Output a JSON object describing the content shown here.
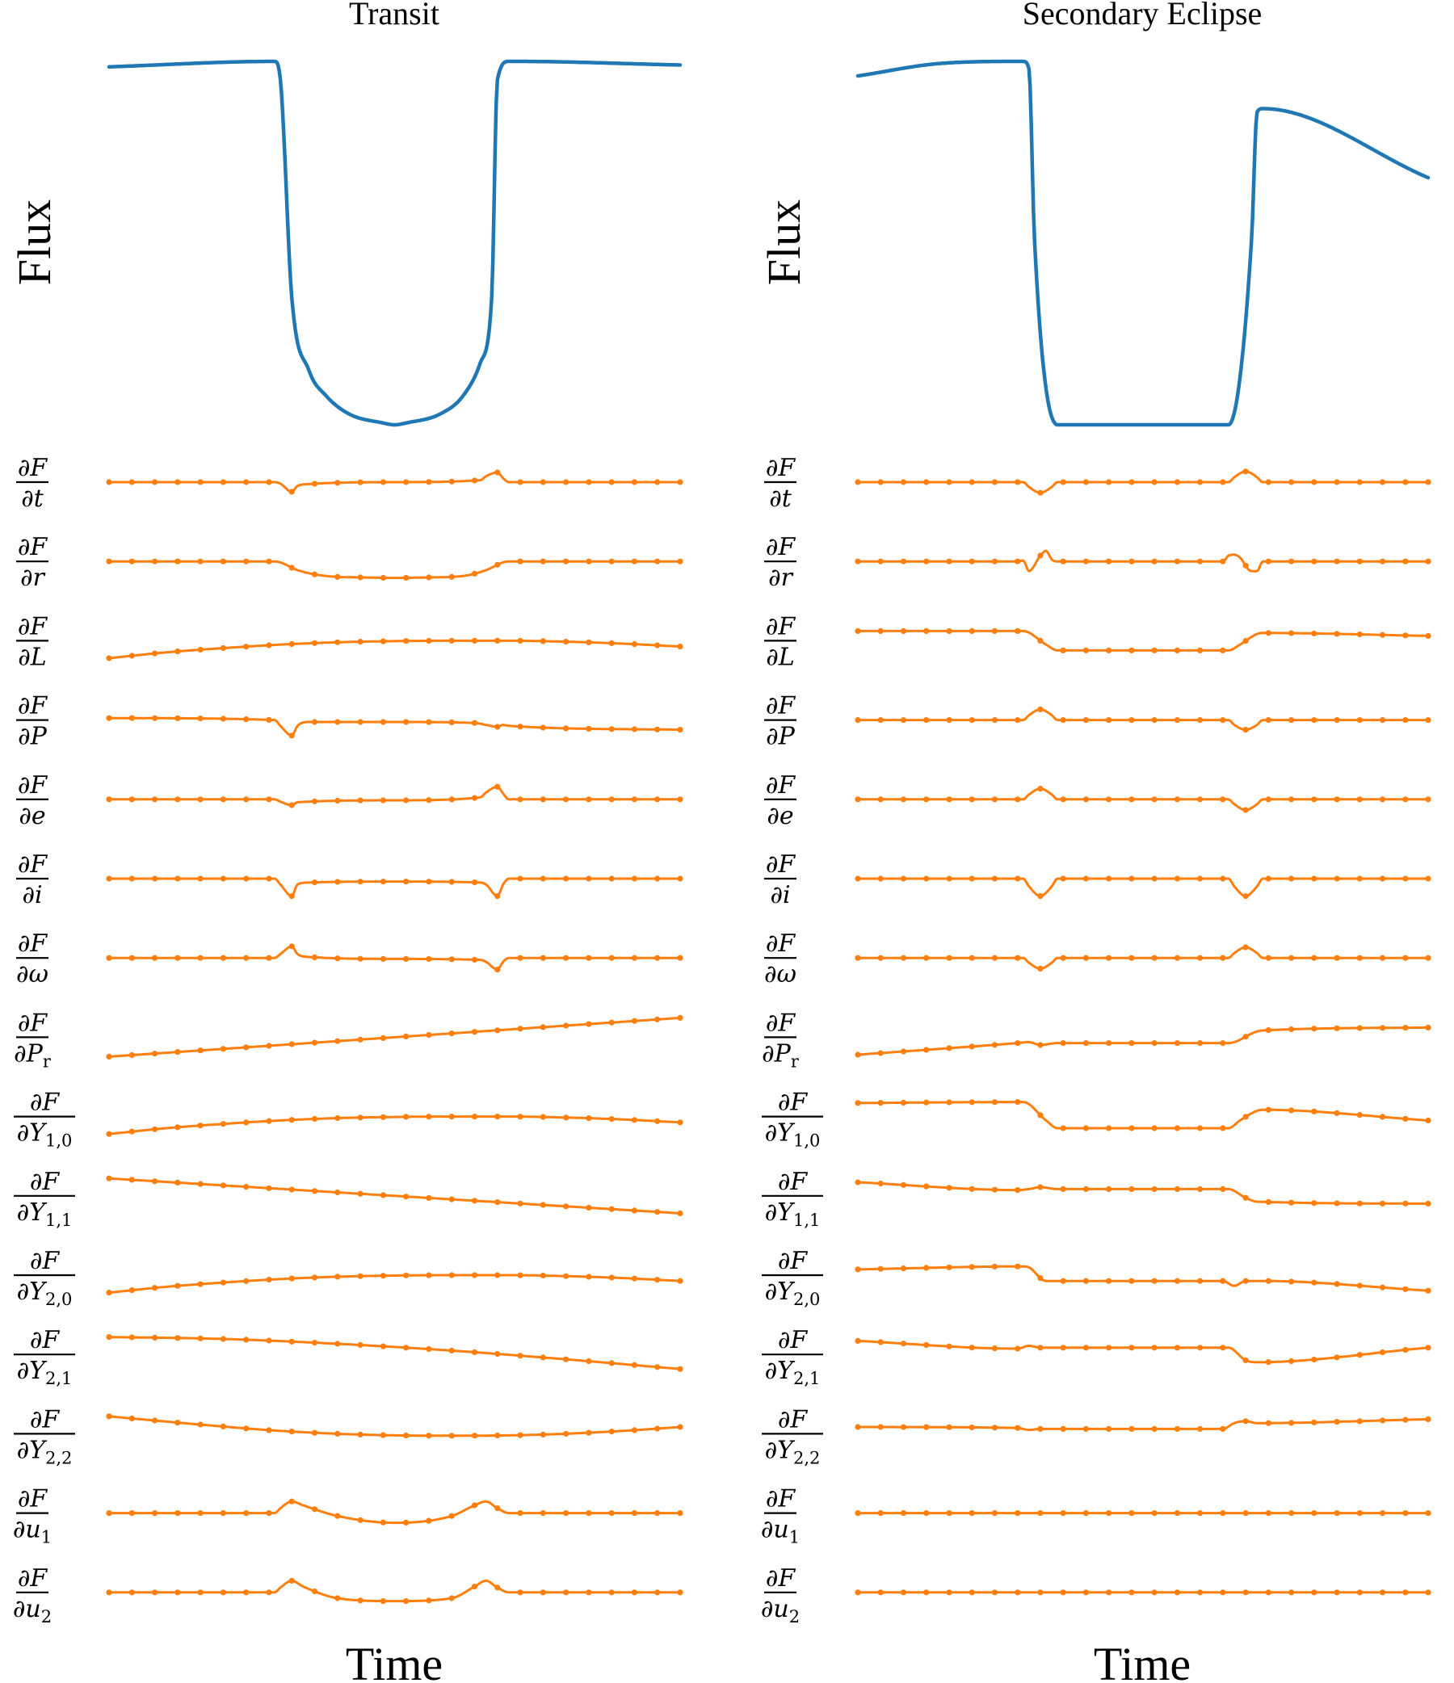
{
  "colors": {
    "flux": "#1f77b4",
    "derivative": "#ff7f0e"
  },
  "chart_data": {
    "type": "line",
    "description_layout": "two columns of stacked line plots; top panel flux vs time, below 15 derivative panels",
    "panels": [
      {
        "title": "Transit",
        "ylabel": "Flux",
        "xlabel": "Time",
        "flux": {
          "x": [
            0,
            0.29,
            0.3,
            0.32,
            0.35,
            0.38,
            0.42,
            0.48,
            0.5,
            0.52,
            0.58,
            0.62,
            0.65,
            0.67,
            0.68,
            0.7,
            0.71,
            1
          ],
          "y": [
            0.985,
            1.0,
            0.95,
            0.35,
            0.15,
            0.08,
            0.03,
            0.005,
            0.0,
            0.005,
            0.03,
            0.08,
            0.17,
            0.35,
            0.95,
            1.0,
            1.0,
            0.99
          ]
        },
        "derivatives": [
          {
            "label": "t",
            "num": "∂F",
            "den": "∂t",
            "x": [
              0,
              0.29,
              0.3,
              0.32,
              0.33,
              0.35,
              0.5,
              0.65,
              0.66,
              0.68,
              0.69,
              0.7,
              1
            ],
            "y": [
              0,
              0,
              -0.08,
              -0.5,
              -0.2,
              -0.1,
              0,
              0.1,
              0.3,
              0.5,
              0.2,
              0,
              0
            ]
          },
          {
            "label": "r",
            "num": "∂F",
            "den": "∂r",
            "x": [
              0,
              0.29,
              0.3,
              0.33,
              0.38,
              0.45,
              0.5,
              0.55,
              0.62,
              0.66,
              0.69,
              0.7,
              1
            ],
            "y": [
              0,
              0,
              -0.05,
              -0.45,
              -0.75,
              -0.83,
              -0.85,
              -0.83,
              -0.75,
              -0.45,
              -0.05,
              0,
              0
            ]
          },
          {
            "label": "L",
            "num": "∂F",
            "den": "∂L",
            "x": [
              0,
              0.1,
              0.2,
              0.3,
              0.4,
              0.5,
              0.6,
              0.7,
              0.8,
              0.9,
              1
            ],
            "y": [
              -0.9,
              -0.6,
              -0.38,
              -0.2,
              -0.08,
              -0.02,
              0,
              0,
              -0.05,
              -0.15,
              -0.3
            ]
          },
          {
            "label": "P",
            "num": "∂F",
            "den": "∂P",
            "x": [
              0,
              0.29,
              0.3,
              0.32,
              0.33,
              0.35,
              0.5,
              0.64,
              0.66,
              0.68,
              0.69,
              0.7,
              1
            ],
            "y": [
              0.1,
              0,
              -0.3,
              -0.8,
              -0.3,
              -0.1,
              -0.1,
              -0.15,
              -0.25,
              -0.35,
              -0.25,
              -0.3,
              -0.5
            ]
          },
          {
            "label": "e",
            "num": "∂F",
            "den": "∂e",
            "x": [
              0,
              0.29,
              0.3,
              0.32,
              0.33,
              0.5,
              0.65,
              0.66,
              0.68,
              0.69,
              0.7,
              1
            ],
            "y": [
              0,
              0,
              -0.12,
              -0.3,
              -0.15,
              -0.05,
              0.1,
              0.35,
              0.65,
              0.3,
              0,
              0
            ]
          },
          {
            "label": "i",
            "num": "∂F",
            "den": "∂i",
            "x": [
              0,
              0.29,
              0.3,
              0.32,
              0.33,
              0.35,
              0.5,
              0.65,
              0.66,
              0.68,
              0.69,
              0.7,
              1
            ],
            "y": [
              0,
              0,
              -0.3,
              -0.9,
              -0.3,
              -0.2,
              -0.15,
              -0.2,
              -0.3,
              -0.9,
              -0.3,
              0,
              0
            ]
          },
          {
            "label": "ω",
            "num": "∂F",
            "den": "∂ω",
            "x": [
              0,
              0.29,
              0.3,
              0.32,
              0.33,
              0.35,
              0.5,
              0.65,
              0.66,
              0.68,
              0.69,
              0.7,
              1
            ],
            "y": [
              0,
              0,
              0.2,
              0.6,
              0.2,
              0.05,
              -0.05,
              -0.1,
              -0.2,
              -0.6,
              -0.2,
              0,
              0
            ]
          },
          {
            "label": "P_r",
            "num": "∂F",
            "den": "∂P",
            "den_sub": "r",
            "x": [
              0,
              1
            ],
            "y": [
              -1,
              1
            ]
          },
          {
            "label": "Y_{1,0}",
            "num": "∂F",
            "den": "∂Y",
            "den_sub": "1,0",
            "x": [
              0,
              0.1,
              0.2,
              0.3,
              0.4,
              0.5,
              0.6,
              0.7,
              0.8,
              0.9,
              1
            ],
            "y": [
              -0.9,
              -0.6,
              -0.38,
              -0.2,
              -0.08,
              -0.02,
              0,
              0,
              -0.05,
              -0.15,
              -0.3
            ]
          },
          {
            "label": "Y_{1,1}",
            "num": "∂F",
            "den": "∂Y",
            "den_sub": "1,1",
            "x": [
              0,
              0.5,
              1
            ],
            "y": [
              0.9,
              0.0,
              -0.9
            ]
          },
          {
            "label": "Y_{2,0}",
            "num": "∂F",
            "den": "∂Y",
            "den_sub": "2,0",
            "x": [
              0,
              0.1,
              0.2,
              0.3,
              0.4,
              0.5,
              0.6,
              0.7,
              0.8,
              0.9,
              1
            ],
            "y": [
              -0.9,
              -0.6,
              -0.38,
              -0.2,
              -0.08,
              -0.02,
              0,
              0,
              -0.05,
              -0.15,
              -0.3
            ]
          },
          {
            "label": "Y_{2,1}",
            "num": "∂F",
            "den": "∂Y",
            "den_sub": "2,1",
            "x": [
              0,
              0.2,
              0.4,
              0.6,
              0.8,
              1
            ],
            "y": [
              0.9,
              0.8,
              0.55,
              0.2,
              -0.25,
              -0.75
            ]
          },
          {
            "label": "Y_{2,2}",
            "num": "∂F",
            "den": "∂Y",
            "den_sub": "2,2",
            "x": [
              0,
              0.15,
              0.3,
              0.45,
              0.6,
              0.75,
              0.9,
              1
            ],
            "y": [
              0.9,
              0.5,
              0.15,
              -0.05,
              -0.1,
              -0.05,
              0.15,
              0.35
            ]
          },
          {
            "label": "u_1",
            "num": "∂F",
            "den": "∂u",
            "den_sub": "1",
            "x": [
              0,
              0.29,
              0.3,
              0.32,
              0.34,
              0.4,
              0.5,
              0.6,
              0.64,
              0.66,
              0.68,
              0.7,
              1
            ],
            "y": [
              0,
              0,
              0.25,
              0.6,
              0.4,
              -0.15,
              -0.5,
              -0.15,
              0.4,
              0.6,
              0.25,
              0,
              0
            ]
          },
          {
            "label": "u_2",
            "num": "∂F",
            "den": "∂u",
            "den_sub": "2",
            "x": [
              0,
              0.29,
              0.3,
              0.32,
              0.34,
              0.4,
              0.5,
              0.6,
              0.64,
              0.66,
              0.68,
              0.7,
              1
            ],
            "y": [
              0,
              0,
              0.25,
              0.6,
              0.3,
              -0.3,
              -0.45,
              -0.3,
              0.3,
              0.6,
              0.25,
              0,
              0
            ]
          }
        ]
      },
      {
        "title": "Secondary Eclipse",
        "ylabel": "Flux",
        "xlabel": "Time",
        "flux": {
          "x": [
            0,
            0.15,
            0.29,
            0.3,
            0.31,
            0.35,
            0.5,
            0.65,
            0.69,
            0.7,
            0.71,
            1
          ],
          "y": [
            0.96,
            0.995,
            1.0,
            0.98,
            0.5,
            0.0,
            0.0,
            0.0,
            0.5,
            0.86,
            0.87,
            0.68
          ]
        },
        "derivatives": [
          {
            "label": "t",
            "num": "∂F",
            "den": "∂t",
            "x": [
              0,
              0.29,
              0.3,
              0.32,
              0.34,
              0.35,
              0.65,
              0.66,
              0.68,
              0.7,
              0.71,
              1
            ],
            "y": [
              0,
              0,
              -0.25,
              -0.55,
              -0.25,
              0,
              0,
              0.25,
              0.55,
              0.25,
              0,
              0
            ]
          },
          {
            "label": "r",
            "num": "∂F",
            "den": "∂r",
            "x": [
              0,
              0.28,
              0.29,
              0.3,
              0.32,
              0.33,
              0.34,
              0.35,
              0.64,
              0.65,
              0.66,
              0.67,
              0.69,
              0.7,
              0.71,
              1
            ],
            "y": [
              0,
              0,
              0.05,
              -0.5,
              0.3,
              0.55,
              0.1,
              0,
              0,
              0.3,
              0.35,
              0.2,
              -0.5,
              -0.5,
              0,
              0
            ]
          },
          {
            "label": "L",
            "num": "∂F",
            "den": "∂L",
            "x": [
              0,
              0.29,
              0.33,
              0.35,
              0.65,
              0.67,
              0.7,
              0.71,
              1
            ],
            "y": [
              0.5,
              0.5,
              -0.2,
              -0.5,
              -0.5,
              -0.2,
              0.35,
              0.4,
              0.25
            ]
          },
          {
            "label": "P",
            "num": "∂F",
            "den": "∂P",
            "x": [
              0,
              0.29,
              0.3,
              0.32,
              0.34,
              0.35,
              0.65,
              0.66,
              0.68,
              0.7,
              0.71,
              1
            ],
            "y": [
              0,
              0,
              0.25,
              0.55,
              0.25,
              0,
              0,
              -0.25,
              -0.5,
              -0.25,
              0,
              0
            ]
          },
          {
            "label": "e",
            "num": "∂F",
            "den": "∂e",
            "x": [
              0,
              0.29,
              0.3,
              0.32,
              0.34,
              0.35,
              0.65,
              0.66,
              0.68,
              0.7,
              0.71,
              1
            ],
            "y": [
              0,
              0,
              0.25,
              0.55,
              0.25,
              0,
              0,
              -0.25,
              -0.55,
              -0.25,
              0,
              0
            ]
          },
          {
            "label": "i",
            "num": "∂F",
            "den": "∂i",
            "x": [
              0,
              0.29,
              0.3,
              0.32,
              0.34,
              0.35,
              0.65,
              0.66,
              0.68,
              0.7,
              0.71,
              1
            ],
            "y": [
              0,
              0,
              -0.4,
              -0.9,
              -0.4,
              0,
              0,
              -0.4,
              -0.9,
              -0.4,
              0,
              0
            ]
          },
          {
            "label": "ω",
            "num": "∂F",
            "den": "∂ω",
            "x": [
              0,
              0.29,
              0.3,
              0.32,
              0.34,
              0.35,
              0.65,
              0.66,
              0.68,
              0.7,
              0.71,
              1
            ],
            "y": [
              0,
              0,
              -0.25,
              -0.55,
              -0.25,
              0,
              0,
              0.25,
              0.55,
              0.25,
              0,
              0
            ]
          },
          {
            "label": "P_r",
            "num": "∂F",
            "den": "∂P",
            "den_sub": "r",
            "x": [
              0,
              0.28,
              0.3,
              0.32,
              0.35,
              0.65,
              0.7,
              0.71,
              1
            ],
            "y": [
              -0.9,
              -0.3,
              -0.25,
              -0.4,
              -0.3,
              -0.3,
              0.3,
              0.35,
              0.5
            ]
          },
          {
            "label": "Y_{1,0}",
            "num": "∂F",
            "den": "∂Y",
            "den_sub": "1,0",
            "x": [
              0,
              0.29,
              0.33,
              0.35,
              0.65,
              0.67,
              0.7,
              0.71,
              1
            ],
            "y": [
              0.7,
              0.75,
              -0.2,
              -0.6,
              -0.6,
              -0.2,
              0.3,
              0.35,
              -0.2
            ]
          },
          {
            "label": "Y_{1,1}",
            "num": "∂F",
            "den": "∂Y",
            "den_sub": "1,1",
            "x": [
              0,
              0.28,
              0.3,
              0.32,
              0.35,
              0.65,
              0.68,
              0.7,
              1
            ],
            "y": [
              0.7,
              0.3,
              0.35,
              0.45,
              0.35,
              0.35,
              -0.1,
              -0.3,
              -0.4
            ]
          },
          {
            "label": "Y_{2,0}",
            "num": "∂F",
            "den": "∂Y",
            "den_sub": "2,0",
            "x": [
              0,
              0.29,
              0.3,
              0.33,
              0.35,
              0.64,
              0.66,
              0.68,
              0.7,
              0.71,
              1
            ],
            "y": [
              0.3,
              0.45,
              0.4,
              -0.3,
              -0.3,
              -0.3,
              -0.55,
              -0.3,
              -0.3,
              -0.3,
              -0.8
            ]
          },
          {
            "label": "Y_{2,1}",
            "num": "∂F",
            "den": "∂Y",
            "den_sub": "2,1",
            "x": [
              0,
              0.28,
              0.3,
              0.32,
              0.35,
              0.65,
              0.68,
              0.7,
              1
            ],
            "y": [
              0.7,
              0.3,
              0.45,
              0.35,
              0.35,
              0.35,
              -0.3,
              -0.4,
              0.35
            ]
          },
          {
            "label": "Y_{2,2}",
            "num": "∂F",
            "den": "∂Y",
            "den_sub": "2,2",
            "x": [
              0,
              0.28,
              0.3,
              0.32,
              0.35,
              0.64,
              0.66,
              0.68,
              0.7,
              1
            ],
            "y": [
              0.35,
              0.3,
              0.2,
              0.25,
              0.25,
              0.25,
              0.55,
              0.65,
              0.55,
              0.75
            ]
          },
          {
            "label": "u_1",
            "num": "∂F",
            "den": "∂u",
            "den_sub": "1",
            "x": [
              0,
              1
            ],
            "y": [
              0,
              0
            ]
          },
          {
            "label": "u_2",
            "num": "∂F",
            "den": "∂u",
            "den_sub": "2",
            "x": [
              0,
              1
            ],
            "y": [
              0,
              0
            ]
          }
        ]
      }
    ]
  }
}
